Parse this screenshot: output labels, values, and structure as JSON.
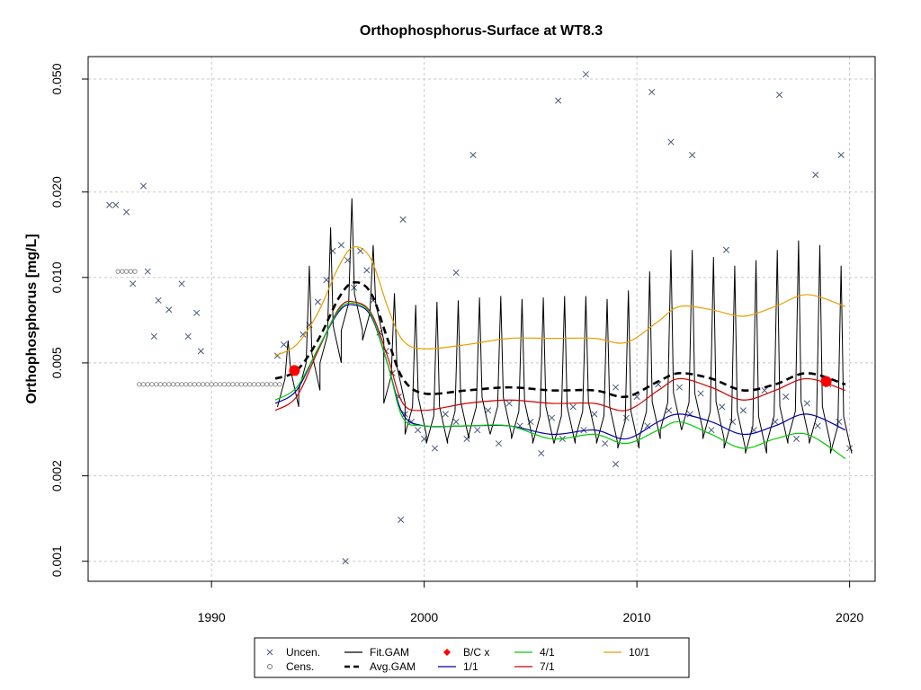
{
  "chart_data": {
    "type": "scatter",
    "title": "Orthophosphorus-Surface at WT8.3",
    "ylabel": "Orthophosphorus [mg/L]",
    "xlabel": "",
    "y_scale": "log",
    "xlim": [
      1984.2,
      2021.2
    ],
    "ylim": [
      0.00085,
      0.06
    ],
    "x_ticks": [
      1990,
      2000,
      2010,
      2020
    ],
    "y_ticks": [
      0.001,
      0.002,
      0.005,
      0.01,
      0.02,
      0.05
    ],
    "y_tick_labels": [
      "0.001",
      "0.002",
      "0.005",
      "0.010",
      "0.020",
      "0.050"
    ],
    "grid": true,
    "legend_position": "bottom",
    "legend": [
      {
        "label": "Uncen.",
        "style": "x",
        "color": "#4a5a7a"
      },
      {
        "label": "Cens.",
        "style": "o",
        "color": "#777777"
      },
      {
        "label": "Fit.GAM",
        "style": "line",
        "color": "#000000"
      },
      {
        "label": "Avg.GAM",
        "style": "dashed",
        "color": "#000000"
      },
      {
        "label": "B/C x",
        "style": "diamond",
        "color": "#ff0000"
      },
      {
        "label": "1/1",
        "style": "line",
        "color": "#0000aa"
      },
      {
        "label": "4/1",
        "style": "line",
        "color": "#00cc00"
      },
      {
        "label": "7/1",
        "style": "line",
        "color": "#cc0000"
      },
      {
        "label": "10/1",
        "style": "line",
        "color": "#e69f00"
      }
    ],
    "uncensored": {
      "x": [
        1985.2,
        1985.5,
        1986.0,
        1986.3,
        1986.8,
        1987.0,
        1987.3,
        1987.5,
        1988.0,
        1988.6,
        1988.9,
        1989.3,
        1989.5,
        1993.1,
        1993.4,
        1993.9,
        1994.3,
        1994.6,
        1995.0,
        1995.4,
        1995.7,
        1996.1,
        1996.4,
        1996.7,
        1997.0,
        1997.3,
        1997.6,
        1997.9,
        1998.2,
        1998.5,
        1998.8,
        1999.1,
        1999.4,
        1999.7,
        2000.0,
        2000.5,
        2001.0,
        2001.5,
        2002.0,
        2002.5,
        2003.0,
        2003.5,
        2004.0,
        2004.5,
        2005.0,
        2005.5,
        2006.0,
        2006.5,
        2007.0,
        2007.5,
        2008.0,
        2008.5,
        2009.0,
        2009.5,
        2010.0,
        2010.5,
        2011.0,
        2011.5,
        2012.0,
        2012.5,
        2013.0,
        2013.5,
        2014.0,
        2014.5,
        2015.0,
        2015.5,
        2016.0,
        2016.5,
        2017.0,
        2017.5,
        2018.0,
        2018.5,
        2019.0,
        2019.5,
        2020.0,
        2006.3,
        2007.6,
        2010.7,
        2011.6,
        2012.6,
        2016.7,
        2018.4,
        2019.6,
        2002.3,
        2001.5,
        2009.0,
        2014.2,
        1996.3,
        1998.9,
        1999.0
      ],
      "y": [
        0.018,
        0.018,
        0.017,
        0.0095,
        0.021,
        0.0105,
        0.0062,
        0.0083,
        0.0077,
        0.0095,
        0.0062,
        0.0075,
        0.0055,
        0.0053,
        0.0058,
        0.0046,
        0.0063,
        0.0068,
        0.0082,
        0.0098,
        0.0124,
        0.013,
        0.0115,
        0.0092,
        0.0124,
        0.0106,
        0.0083,
        0.0064,
        0.0055,
        0.0046,
        0.0038,
        0.0033,
        0.0031,
        0.0029,
        0.0027,
        0.0025,
        0.0033,
        0.0031,
        0.0027,
        0.0029,
        0.0034,
        0.0026,
        0.0036,
        0.003,
        0.0031,
        0.0024,
        0.0032,
        0.0027,
        0.0035,
        0.0029,
        0.0033,
        0.0026,
        0.0041,
        0.0032,
        0.0038,
        0.003,
        0.0042,
        0.0034,
        0.0041,
        0.0033,
        0.0039,
        0.0029,
        0.0035,
        0.0031,
        0.0034,
        0.0029,
        0.004,
        0.0031,
        0.0038,
        0.0027,
        0.0036,
        0.003,
        0.0042,
        0.0031,
        0.0025,
        0.042,
        0.052,
        0.045,
        0.03,
        0.027,
        0.044,
        0.023,
        0.027,
        0.027,
        0.0104,
        0.0022,
        0.0125,
        0.001,
        0.0014,
        0.016
      ]
    },
    "censored": {
      "x": [
        1986.6,
        1986.8,
        1987.0,
        1987.2,
        1987.4,
        1987.6,
        1987.8,
        1988.0,
        1988.2,
        1988.4,
        1988.6,
        1988.8,
        1989.0,
        1989.2,
        1989.4,
        1989.6,
        1989.8,
        1990.0,
        1990.2,
        1990.4,
        1990.6,
        1990.8,
        1991.0,
        1991.2,
        1991.4,
        1991.6,
        1991.8,
        1992.0,
        1992.2,
        1992.4,
        1992.6,
        1992.8,
        1993.0,
        1993.2,
        1985.6,
        1985.8,
        1986.0,
        1986.2,
        1986.4
      ],
      "y": [
        0.0042,
        0.0042,
        0.0042,
        0.0042,
        0.0042,
        0.0042,
        0.0042,
        0.0042,
        0.0042,
        0.0042,
        0.0042,
        0.0042,
        0.0042,
        0.0042,
        0.0042,
        0.0042,
        0.0042,
        0.0042,
        0.0042,
        0.0042,
        0.0042,
        0.0042,
        0.0042,
        0.0042,
        0.0042,
        0.0042,
        0.0042,
        0.0042,
        0.0042,
        0.0042,
        0.0042,
        0.0042,
        0.0042,
        0.0042,
        0.0105,
        0.0105,
        0.0105,
        0.0105,
        0.0105
      ]
    },
    "avg_gam": {
      "x": [
        1993.0,
        1994.0,
        1995.0,
        1996.0,
        1996.7,
        1997.5,
        1998.3,
        1999.0,
        2000.0,
        2002.0,
        2004.0,
        2006.0,
        2008.0,
        2009.5,
        2011.0,
        2012.0,
        2013.5,
        2015.0,
        2016.5,
        2018.0,
        2019.8
      ],
      "y": [
        0.0044,
        0.0047,
        0.006,
        0.0085,
        0.0096,
        0.0088,
        0.006,
        0.0044,
        0.0039,
        0.004,
        0.0041,
        0.004,
        0.004,
        0.0038,
        0.0043,
        0.0046,
        0.0044,
        0.004,
        0.0042,
        0.0046,
        0.0042
      ]
    },
    "series": [
      {
        "name": "10/1",
        "color": "#e69f00",
        "x": [
          1993.0,
          1994.0,
          1995.0,
          1996.0,
          1996.7,
          1997.5,
          1998.3,
          1999.0,
          2000.0,
          2002.0,
          2004.0,
          2006.0,
          2008.0,
          2009.5,
          2011.0,
          2012.0,
          2013.5,
          2015.0,
          2016.5,
          2018.0,
          2019.8
        ],
        "y": [
          0.0053,
          0.0058,
          0.0075,
          0.011,
          0.0128,
          0.0116,
          0.0078,
          0.006,
          0.0056,
          0.0058,
          0.0061,
          0.0061,
          0.0061,
          0.0059,
          0.007,
          0.0079,
          0.0077,
          0.0073,
          0.0079,
          0.0087,
          0.0079
        ]
      },
      {
        "name": "7/1",
        "color": "#cc0000",
        "x": [
          1993.0,
          1994.0,
          1995.0,
          1996.0,
          1996.7,
          1997.5,
          1998.3,
          1999.0,
          2000.0,
          2002.0,
          2004.0,
          2006.0,
          2008.0,
          2009.5,
          2011.0,
          2012.0,
          2013.5,
          2015.0,
          2016.5,
          2018.0,
          2019.8
        ],
        "y": [
          0.0034,
          0.0038,
          0.0055,
          0.0078,
          0.0082,
          0.0075,
          0.0052,
          0.0036,
          0.0034,
          0.0036,
          0.0037,
          0.0036,
          0.0036,
          0.0034,
          0.004,
          0.0044,
          0.0041,
          0.0037,
          0.004,
          0.0044,
          0.004
        ]
      },
      {
        "name": "1/1",
        "color": "#0000aa",
        "x": [
          1993.0,
          1994.0,
          1995.0,
          1996.0,
          1996.7,
          1997.5,
          1998.3,
          1999.0,
          2000.0,
          2002.0,
          2004.0,
          2006.0,
          2008.0,
          2009.5,
          2011.0,
          2012.0,
          2013.5,
          2015.0,
          2016.5,
          2018.0,
          2019.8
        ],
        "y": [
          0.0036,
          0.004,
          0.0056,
          0.0076,
          0.008,
          0.0073,
          0.0049,
          0.0033,
          0.003,
          0.003,
          0.003,
          0.0028,
          0.0029,
          0.0027,
          0.0031,
          0.0033,
          0.0031,
          0.0028,
          0.003,
          0.0033,
          0.0029
        ]
      },
      {
        "name": "4/1",
        "color": "#00cc00",
        "x": [
          1993.0,
          1994.0,
          1995.0,
          1996.0,
          1996.7,
          1997.5,
          1998.3,
          1999.0,
          2000.0,
          2002.0,
          2004.0,
          2006.0,
          2008.0,
          2009.5,
          2011.0,
          2012.0,
          2013.5,
          2015.0,
          2016.5,
          2018.0,
          2019.8
        ],
        "y": [
          0.0037,
          0.0041,
          0.0056,
          0.0077,
          0.0081,
          0.0074,
          0.0049,
          0.0032,
          0.003,
          0.003,
          0.003,
          0.0027,
          0.0028,
          0.0026,
          0.0029,
          0.0031,
          0.0028,
          0.0025,
          0.0027,
          0.0028,
          0.0023
        ]
      }
    ],
    "fit_gam": {
      "seasonal_peak_x": [
        1993.6,
        1994.6,
        1995.6,
        1996.6,
        1997.6,
        1998.6,
        1999.6,
        2000.6,
        2001.6,
        2002.6,
        2003.6,
        2004.6,
        2005.6,
        2006.6,
        2007.6,
        2008.6,
        2009.6,
        2010.6,
        2011.6,
        2012.6,
        2013.6,
        2014.6,
        2015.6,
        2016.6,
        2017.6,
        2018.6,
        2019.6
      ],
      "peak_y": [
        0.006,
        0.011,
        0.015,
        0.019,
        0.013,
        0.0088,
        0.008,
        0.0082,
        0.0083,
        0.0085,
        0.0086,
        0.0084,
        0.0085,
        0.0086,
        0.0086,
        0.0084,
        0.009,
        0.0105,
        0.0125,
        0.0125,
        0.0118,
        0.011,
        0.0115,
        0.0125,
        0.0135,
        0.013,
        0.011
      ],
      "trough_y": [
        0.0035,
        0.004,
        0.005,
        0.0065,
        0.006,
        0.0036,
        0.0028,
        0.0026,
        0.0027,
        0.0028,
        0.0028,
        0.0027,
        0.0026,
        0.0026,
        0.0027,
        0.0026,
        0.0025,
        0.0027,
        0.0029,
        0.0029,
        0.0027,
        0.0025,
        0.0024,
        0.0026,
        0.0027,
        0.0026,
        0.0024
      ]
    },
    "bc_points": {
      "x": [
        1993.9,
        2018.9
      ],
      "y": [
        0.0047,
        0.0043
      ],
      "color": "#ff0000"
    }
  }
}
